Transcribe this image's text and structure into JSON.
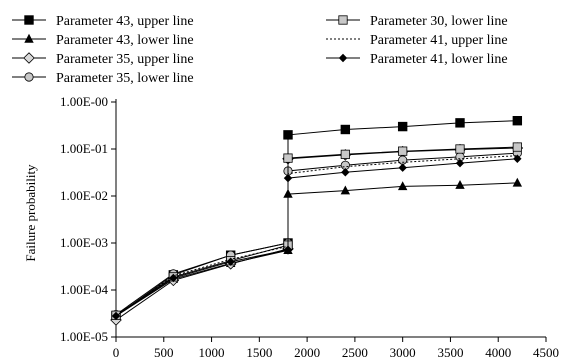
{
  "chart_data": {
    "type": "line",
    "title": "",
    "xlabel": "",
    "ylabel": "Failure probability",
    "y_scale": "log",
    "xlim": [
      0,
      4500
    ],
    "ylim": [
      1e-05,
      1
    ],
    "grid": false,
    "legend": "top",
    "x_ticks": [
      0,
      500,
      1000,
      1500,
      2000,
      2500,
      3000,
      3500,
      4000,
      4500
    ],
    "x_tick_labels": [
      "0",
      "500",
      "1000",
      "1500",
      "2000",
      "2500",
      "3000",
      "3500",
      "4000",
      "4500"
    ],
    "y_ticks": [
      1e-05,
      0.0001,
      0.001,
      0.01,
      0.1,
      1
    ],
    "y_tick_labels": [
      "1.00E-05",
      "1.00E-04",
      "1.00E-03",
      "1.00E-02",
      "1.00E-01",
      "1.00E-00"
    ],
    "series": [
      {
        "name": "Parameter 43, upper line",
        "marker": "square-filled",
        "line": "solid",
        "x": [
          0,
          600,
          1200,
          1800,
          1800,
          2400,
          3000,
          3600,
          4200
        ],
        "y": [
          2.8e-05,
          0.00021,
          0.00055,
          0.001,
          0.2,
          0.26,
          0.3,
          0.36,
          0.4
        ]
      },
      {
        "name": "Parameter 43, lower line",
        "marker": "triangle-filled",
        "line": "solid",
        "x": [
          0,
          600,
          1200,
          1800,
          1800,
          2400,
          3000,
          3600,
          4200
        ],
        "y": [
          2.8e-05,
          0.00017,
          0.00037,
          0.0007,
          0.011,
          0.013,
          0.016,
          0.017,
          0.019
        ]
      },
      {
        "name": "Parameter 35, upper line",
        "marker": "diamond-open",
        "line": "solid",
        "x": [
          0,
          600,
          1200,
          1800,
          1800,
          2400,
          3000,
          3600,
          4200
        ],
        "y": [
          2.3e-05,
          0.00016,
          0.00036,
          0.00075,
          0.062,
          0.075,
          0.088,
          0.097,
          0.105
        ]
      },
      {
        "name": "Parameter 35, lower line",
        "marker": "circle-open",
        "line": "solid",
        "x": [
          0,
          600,
          1200,
          1800,
          1800,
          2400,
          3000,
          3600,
          4200
        ],
        "y": [
          3e-05,
          0.00022,
          0.00055,
          0.001,
          0.034,
          0.045,
          0.058,
          0.068,
          0.082
        ]
      },
      {
        "name": "Parameter 30, lower line",
        "marker": "square-open",
        "line": "solid",
        "x": [
          0,
          600,
          1200,
          1800,
          1800,
          2400,
          3000,
          3600,
          4200
        ],
        "y": [
          2.9e-05,
          0.00019,
          0.00042,
          0.0009,
          0.064,
          0.077,
          0.09,
          0.1,
          0.11
        ]
      },
      {
        "name": "Parameter 41, upper line",
        "marker": "none",
        "line": "dotted",
        "x": [
          0,
          600,
          1200,
          1800,
          1800,
          2400,
          3000,
          3600,
          4200
        ],
        "y": [
          2.8e-05,
          0.0002,
          0.00045,
          0.00085,
          0.03,
          0.042,
          0.052,
          0.062,
          0.072
        ]
      },
      {
        "name": "Parameter 41, lower line",
        "marker": "diamond-filled",
        "line": "solid",
        "x": [
          0,
          600,
          1200,
          1800,
          1800,
          2400,
          3000,
          3600,
          4200
        ],
        "y": [
          2.8e-05,
          0.00018,
          0.0004,
          0.00072,
          0.024,
          0.032,
          0.04,
          0.05,
          0.062
        ]
      }
    ]
  }
}
